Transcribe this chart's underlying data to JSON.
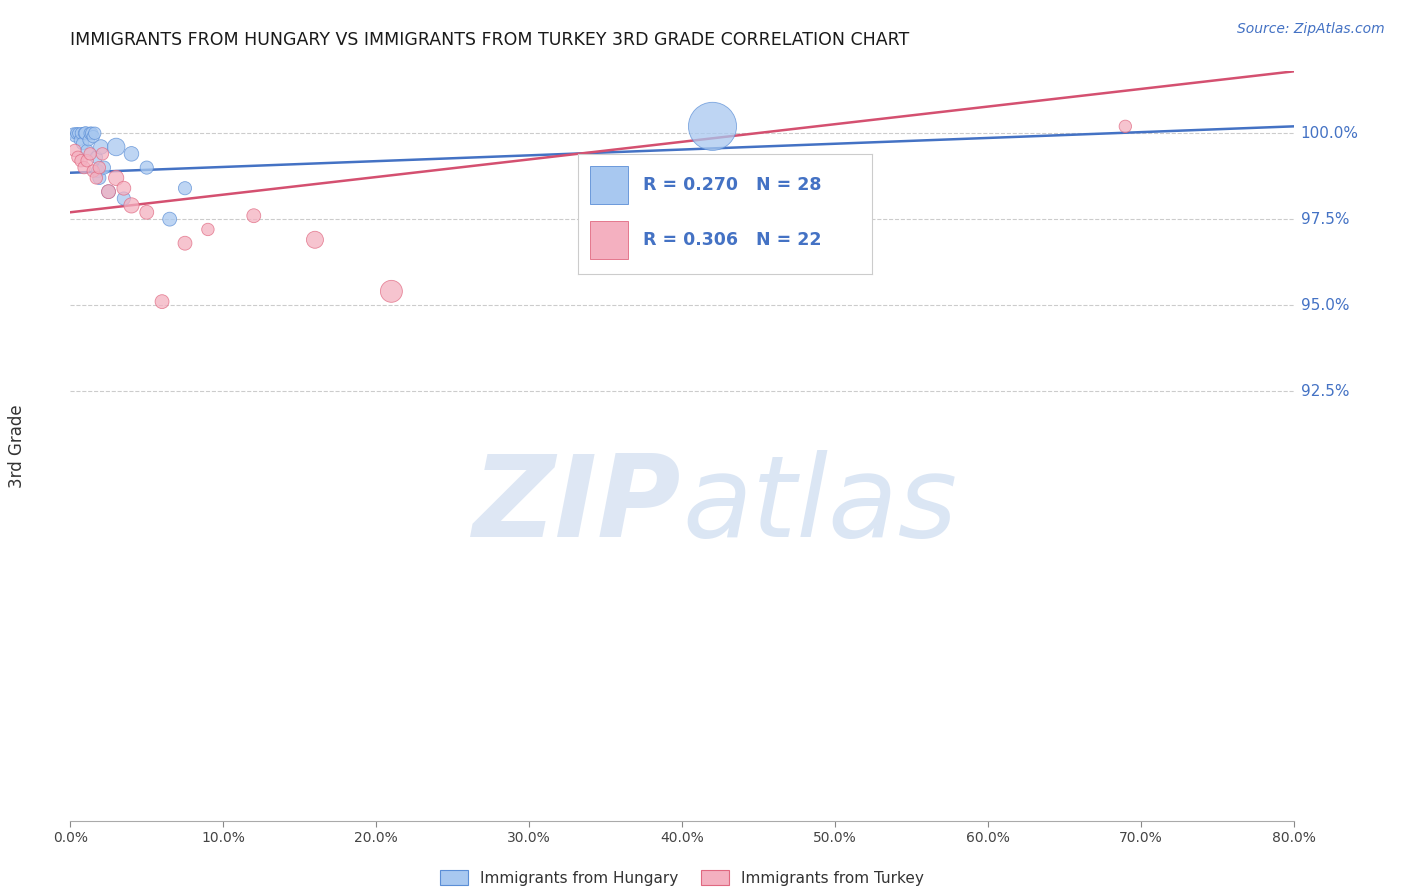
{
  "title": "IMMIGRANTS FROM HUNGARY VS IMMIGRANTS FROM TURKEY 3RD GRADE CORRELATION CHART",
  "source": "Source: ZipAtlas.com",
  "ylabel": "3rd Grade",
  "xmin": 0.0,
  "xmax": 80.0,
  "ymin": 80.0,
  "ymax": 101.8,
  "yticks": [
    92.5,
    95.0,
    97.5,
    100.0
  ],
  "xticks": [
    0.0,
    10.0,
    20.0,
    30.0,
    40.0,
    50.0,
    60.0,
    70.0,
    80.0
  ],
  "hungary_R": 0.27,
  "hungary_N": 28,
  "turkey_R": 0.306,
  "turkey_N": 22,
  "hungary_color": "#A8C8F0",
  "turkey_color": "#F4B0C0",
  "hungary_edge_color": "#5B8ED6",
  "turkey_edge_color": "#E06880",
  "hungary_line_color": "#4472C4",
  "turkey_line_color": "#D45070",
  "legend_text_color": "#4472C4",
  "watermark_zip_color": "#C8D8EE",
  "watermark_atlas_color": "#B0C8E8",
  "right_axis_color": "#4472C4",
  "hungary_x": [
    0.2,
    0.3,
    0.4,
    0.5,
    0.6,
    0.7,
    0.8,
    0.9,
    1.0,
    1.1,
    1.2,
    1.3,
    1.4,
    1.5,
    1.6,
    1.7,
    1.8,
    1.9,
    2.0,
    2.2,
    2.5,
    3.0,
    3.5,
    4.0,
    5.0,
    6.5,
    7.5,
    42.0
  ],
  "hungary_y": [
    100.0,
    99.9,
    100.0,
    100.0,
    99.8,
    100.0,
    99.7,
    100.0,
    100.0,
    99.5,
    99.8,
    100.0,
    100.0,
    99.9,
    100.0,
    99.3,
    98.9,
    98.7,
    99.6,
    99.0,
    98.3,
    99.6,
    98.1,
    99.4,
    99.0,
    97.5,
    98.4,
    100.2
  ],
  "hungary_size": [
    60,
    60,
    70,
    60,
    60,
    70,
    80,
    70,
    90,
    80,
    70,
    80,
    80,
    80,
    80,
    80,
    90,
    90,
    110,
    90,
    100,
    160,
    90,
    110,
    90,
    100,
    90,
    1200
  ],
  "turkey_x": [
    0.3,
    0.5,
    0.7,
    0.9,
    1.1,
    1.3,
    1.5,
    1.7,
    1.9,
    2.1,
    2.5,
    3.0,
    3.5,
    4.0,
    5.0,
    6.0,
    7.5,
    9.0,
    12.0,
    16.0,
    21.0,
    69.0
  ],
  "turkey_y": [
    99.5,
    99.3,
    99.2,
    99.0,
    99.2,
    99.4,
    98.9,
    98.7,
    99.0,
    99.4,
    98.3,
    98.7,
    98.4,
    97.9,
    97.7,
    95.1,
    96.8,
    97.2,
    97.6,
    96.9,
    95.4,
    100.2
  ],
  "turkey_size": [
    80,
    80,
    80,
    80,
    80,
    80,
    80,
    80,
    80,
    80,
    100,
    120,
    100,
    120,
    100,
    100,
    100,
    80,
    100,
    150,
    250,
    80
  ],
  "hungary_trend_x": [
    0.0,
    80.0
  ],
  "hungary_trend_y": [
    98.85,
    100.2
  ],
  "turkey_trend_x": [
    0.0,
    80.0
  ],
  "turkey_trend_y": [
    97.7,
    101.8
  ]
}
